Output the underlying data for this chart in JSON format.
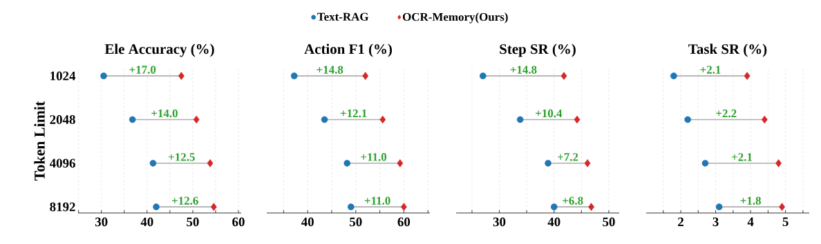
{
  "chart_data": [
    {
      "type": "scatter",
      "orientation": "horizontal",
      "title": "Ele Accuracy (%)",
      "ylabel": "Token Limit",
      "categories": [
        "1024",
        "2048",
        "4096",
        "8192"
      ],
      "legend": "top",
      "grid": "x",
      "xlim": [
        24.9,
        60.6
      ],
      "xticks": [
        {
          "value": 25,
          "label": null
        },
        30,
        {
          "value": 35,
          "label": null
        },
        40,
        {
          "value": 45,
          "label": null
        },
        50,
        {
          "value": 55,
          "label": null
        },
        60
      ],
      "series": [
        {
          "name": "Text-RAG",
          "color": "#1f77b4",
          "marker": "circle",
          "values": [
            30.5,
            36.8,
            41.3,
            42.0
          ]
        },
        {
          "name": "OCR-Memory(Ours)",
          "color": "#d62728",
          "marker": "diamond",
          "values": [
            47.5,
            50.8,
            53.8,
            54.6
          ]
        }
      ],
      "annotations": [
        "+17.0",
        "+14.0",
        "+12.5",
        "+12.6"
      ]
    },
    {
      "type": "scatter",
      "orientation": "horizontal",
      "title": "Action F1 (%)",
      "categories": [
        "1024",
        "2048",
        "4096",
        "8192"
      ],
      "tick_labels": "x",
      "grid": "x",
      "xlim": [
        31.5,
        65.4
      ],
      "xticks": [
        {
          "value": 35,
          "label": null
        },
        40,
        {
          "value": 45,
          "label": null
        },
        50,
        {
          "value": 55,
          "label": null
        },
        60,
        {
          "value": 65,
          "label": null
        }
      ],
      "series": [
        {
          "color": "#1f77b4",
          "marker": "circle",
          "values": [
            37.2,
            43.5,
            48.2,
            49.0
          ]
        },
        {
          "color": "#d62728",
          "marker": "diamond",
          "values": [
            52.0,
            55.6,
            59.2,
            60.0
          ]
        }
      ],
      "annotations": [
        "+14.8",
        "+12.1",
        "+11.0",
        "+11.0"
      ]
    },
    {
      "type": "scatter",
      "orientation": "horizontal",
      "title": "Step SR (%)",
      "categories": [
        "1024",
        "2048",
        "4096",
        "8192"
      ],
      "tick_labels": "x",
      "grid": "x",
      "xlim": [
        22.1,
        51.9
      ],
      "xticks": [
        {
          "value": 25,
          "label": null
        },
        30,
        {
          "value": 35,
          "label": null
        },
        40,
        {
          "value": 45,
          "label": null
        },
        50
      ],
      "series": [
        {
          "color": "#1f77b4",
          "marker": "circle",
          "values": [
            27.0,
            33.8,
            38.9,
            40.0
          ]
        },
        {
          "color": "#d62728",
          "marker": "diamond",
          "values": [
            41.8,
            44.2,
            46.1,
            46.8
          ]
        }
      ],
      "annotations": [
        "+14.8",
        "+10.4",
        "+7.2",
        "+6.8"
      ]
    },
    {
      "type": "scatter",
      "orientation": "horizontal",
      "title": "Task SR (%)",
      "categories": [
        "1024",
        "2048",
        "4096",
        "8192"
      ],
      "tick_labels": "x",
      "grid": "x",
      "xlim": [
        1.01,
        5.68
      ],
      "xticks": [
        {
          "value": 1.5,
          "label": null
        },
        2,
        {
          "value": 2.5,
          "label": null
        },
        3,
        {
          "value": 3.5,
          "label": null
        },
        4,
        {
          "value": 4.5,
          "label": null
        },
        5,
        {
          "value": 5.5,
          "label": null
        }
      ],
      "series": [
        {
          "color": "#1f77b4",
          "marker": "circle",
          "values": [
            1.8,
            2.2,
            2.7,
            3.1
          ]
        },
        {
          "color": "#d62728",
          "marker": "diamond",
          "values": [
            3.9,
            4.4,
            4.8,
            4.9
          ]
        }
      ],
      "annotations": [
        "+2.1",
        "+2.2",
        "+2.1",
        "+1.8"
      ]
    }
  ]
}
